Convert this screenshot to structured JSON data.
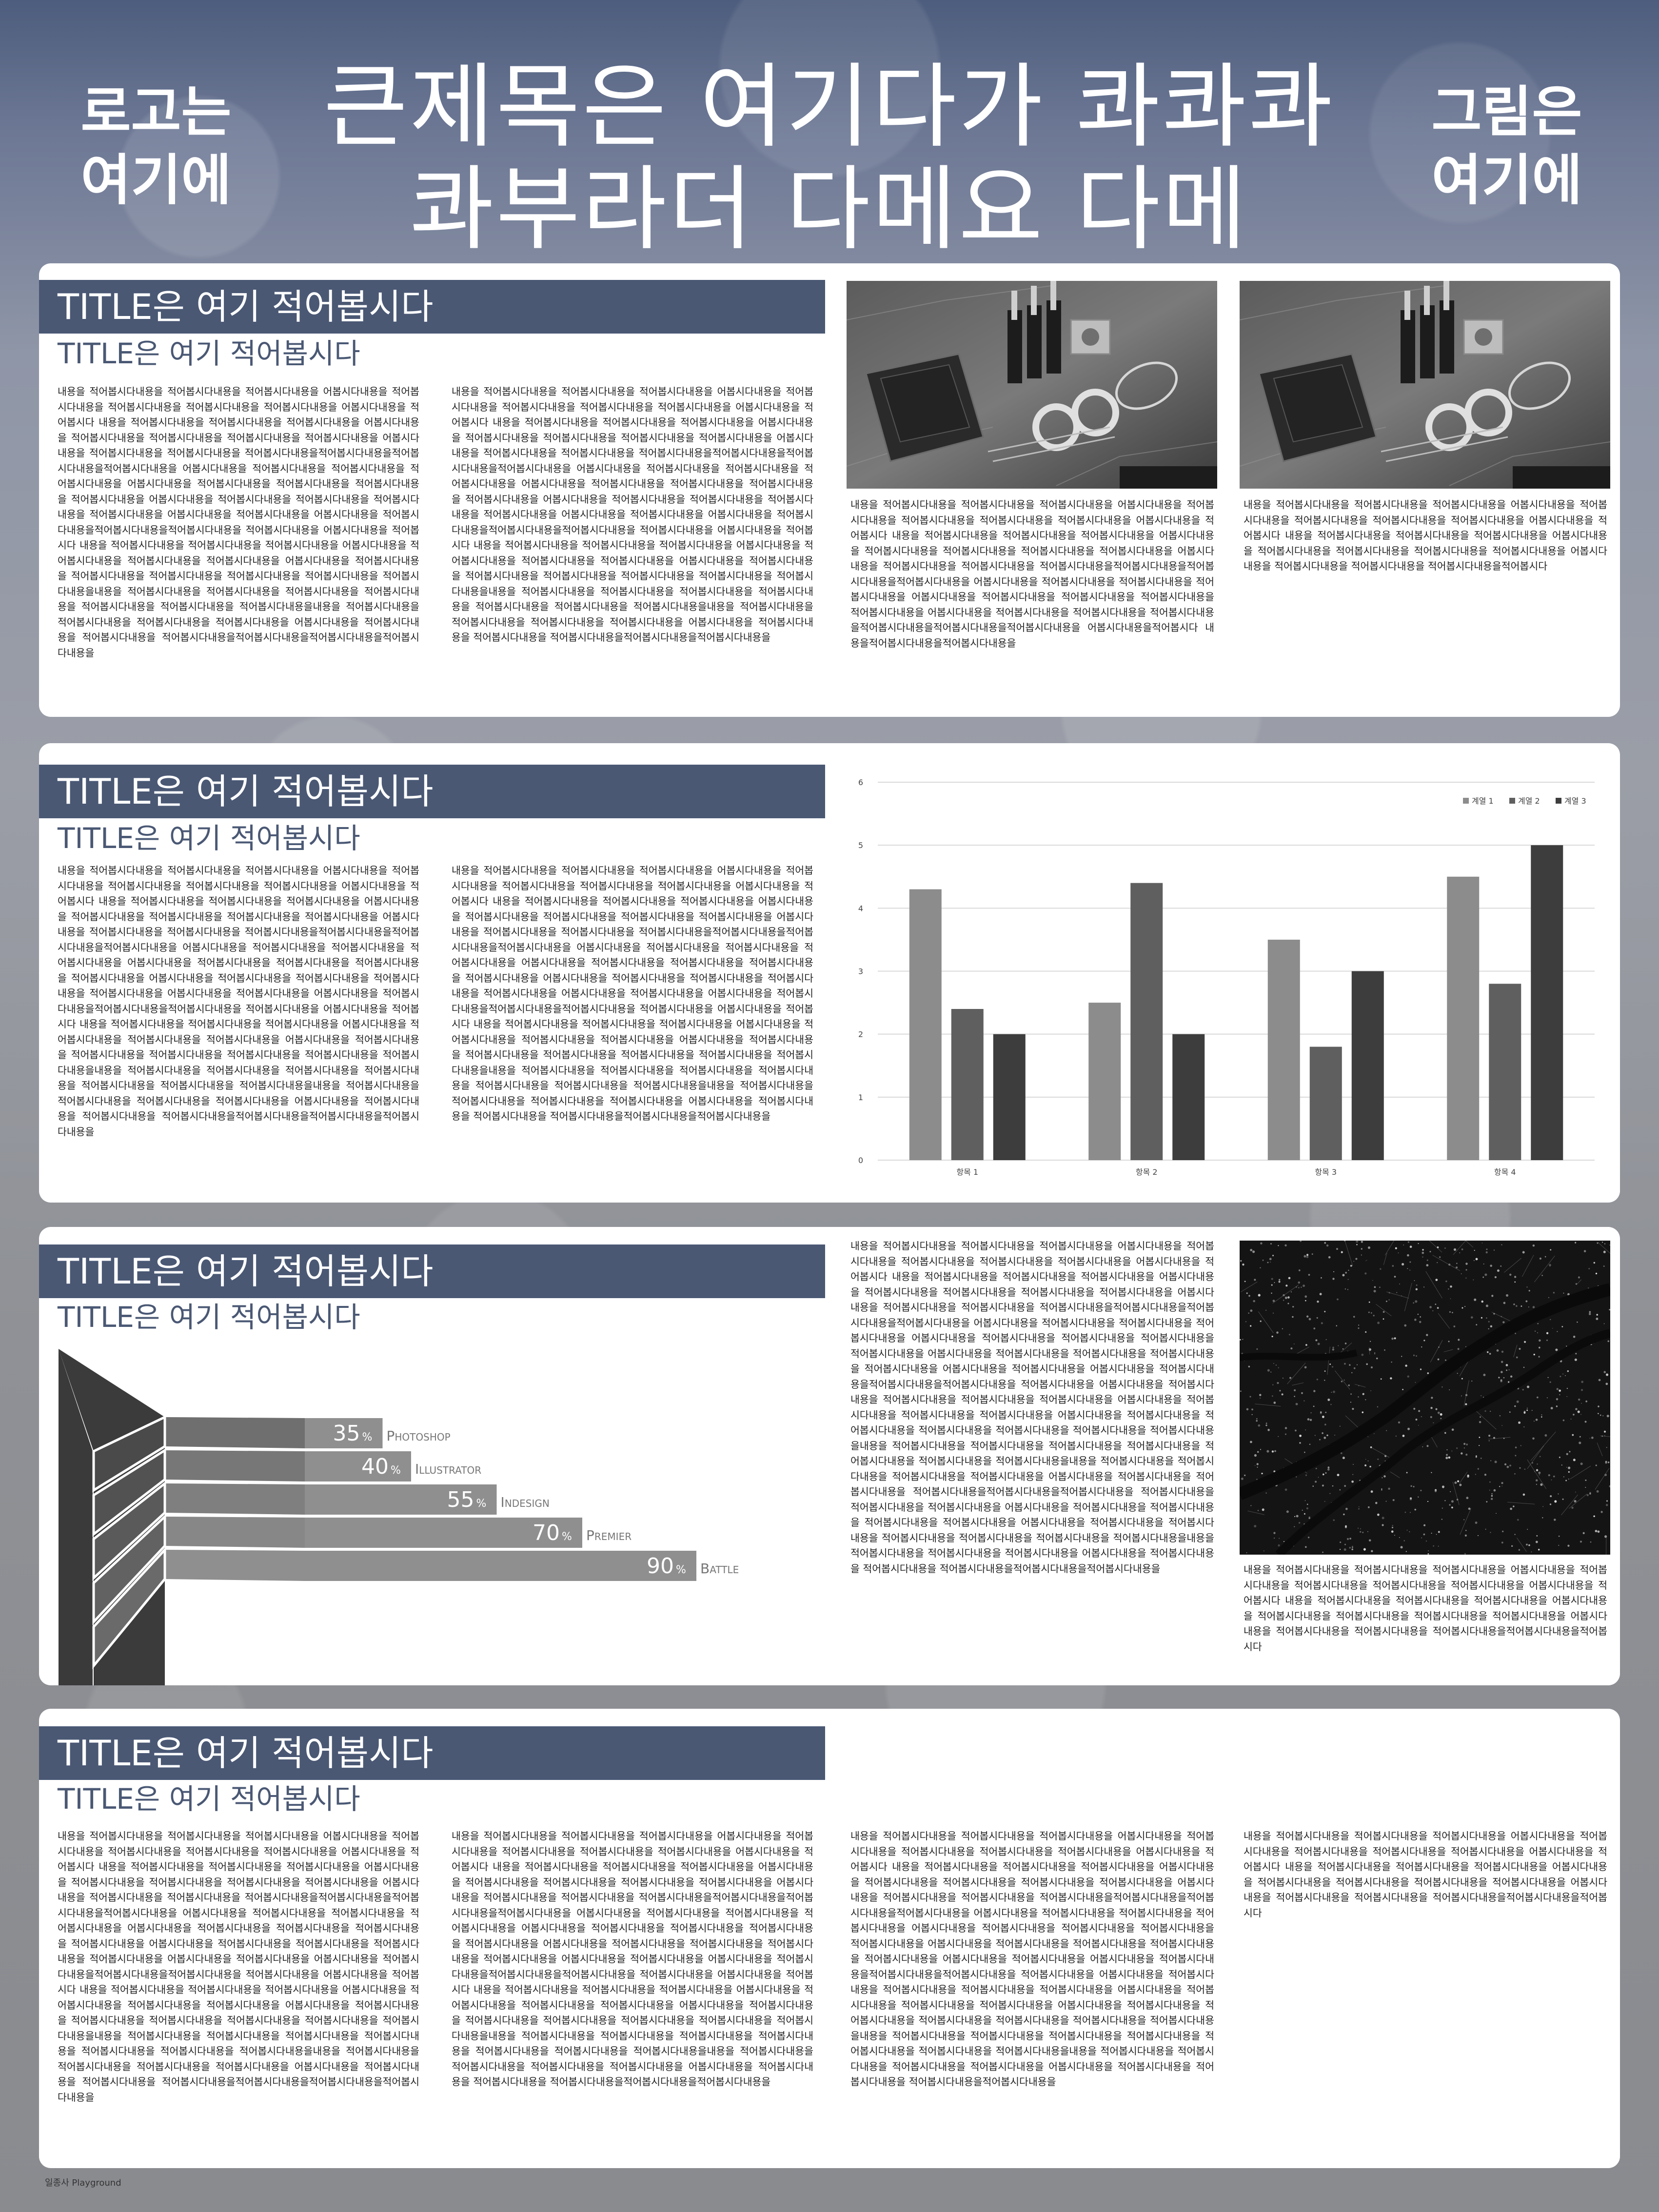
{
  "header": {
    "logo_left": "로고는\n여기에",
    "title": "큰제목은 여기다가 콰콰콰\n콰부라더 다메요 다메",
    "logo_right": "그림은\n여기에"
  },
  "sections": [
    {
      "title": "TITLE은 여기 적어봅시다",
      "subtitle": "TITLE은 여기 적어봅시다",
      "text_col1": "내용을 적어봅시다내용을 적어봅시다내용을 적어봅시다내용을 어봅시다내용을 적어봅시다내용을 적어봅시다내용을 적어봅시다내용을 적어봅시다내용을 어봅시다내용을 적어봅시다 내용을 적어봅시다내용을 적어봅시다내용을 적어봅시다내용을 어봅시다내용을 적어봅시다내용을 적어봅시다내용을 적어봅시다내용을 적어봅시다내용을 어봅시다내용을 적어봅시다내용을 적어봅시다내용을 적어봅시다내용을적어봅시다내용을적어봅시다내용을적어봅시다내용을 어봅시다내용을 적어봅시다내용을 적어봅시다내용을 적어봅시다내용을 어봅시다내용을 적어봅시다내용을 적어봅시다내용을 적어봅시다내용을 적어봅시다내용을 어봅시다내용을 적어봅시다내용을 적어봅시다내용을 적어봅시다내용을 적어봅시다내용을 어봅시다내용을 적어봅시다내용을 어봅시다내용을 적어봅시다내용을적어봅시다내용을적어봅시다내용을 적어봅시다내용을 어봅시다내용을 적어봅시다 내용을 적어봅시다내용을 적어봅시다내용을 적어봅시다내용을 어봅시다내용을 적어봅시다내용을 적어봅시다내용을 적어봅시다내용을 어봅시다내용을 적어봅시다내용을 적어봅시다내용을 적어봅시다내용을 적어봅시다내용을 적어봅시다내용을 적어봅시다내용을내용을 적어봅시다내용을 적어봅시다내용을 적어봅시다내용을 적어봅시다내용을 적어봅시다내용을 적어봅시다내용을 적어봅시다내용을내용을 적어봅시다내용을 적어봅시다내용을 적어봅시다내용을 적어봅시다내용을 어봅시다내용을 적어봅시다내용을 적어봅시다내용을 적어봅시다내용을적어봅시다내용을적어봅시다내용을적어봅시다내용을",
      "text_col2": "내용을 적어봅시다내용을 적어봅시다내용을 적어봅시다내용을 어봅시다내용을 적어봅시다내용을 적어봅시다내용을 적어봅시다내용을 적어봅시다내용을 어봅시다내용을 적어봅시다 내용을 적어봅시다내용을 적어봅시다내용을 적어봅시다내용을 어봅시다내용을 적어봅시다내용을 적어봅시다내용을 적어봅시다내용을 적어봅시다내용을 어봅시다내용을 적어봅시다내용을 적어봅시다내용을 적어봅시다내용을적어봅시다내용을적어봅시다내용을적어봅시다내용을 어봅시다내용을 적어봅시다내용을 적어봅시다내용을 적어봅시다내용을 어봅시다내용을 적어봅시다내용을 적어봅시다내용을 적어봅시다내용을 적어봅시다내용을 어봅시다내용을 적어봅시다내용을 적어봅시다내용을 적어봅시다내용을 적어봅시다내용을 어봅시다내용을 적어봅시다내용을 어봅시다내용을 적어봅시다내용을적어봅시다내용을적어봅시다내용을 적어봅시다내용을 어봅시다내용을 적어봅시다 내용을 적어봅시다내용을 적어봅시다내용을 적어봅시다내용을 어봅시다내용을 적어봅시다내용을 적어봅시다내용을 적어봅시다내용을 어봅시다내용을 적어봅시다내용을 적어봅시다내용을 적어봅시다내용을 적어봅시다내용을 적어봅시다내용을 적어봅시다내용을내용을 적어봅시다내용을 적어봅시다내용을 적어봅시다내용을 적어봅시다내용을 적어봅시다내용을 적어봅시다내용을 적어봅시다내용을내용을 적어봅시다내용을 적어봅시다내용을 적어봅시다내용을 적어봅시다내용을 어봅시다내용을 적어봅시다내용을 적어봅시다내용을 적어봅시다내용을적어봅시다내용을적어봅시다내용을",
      "caption_1": "내용을 적어봅시다내용을 적어봅시다내용을 적어봅시다내용을 어봅시다내용을 적어봅시다내용을 적어봅시다내용을 적어봅시다내용을 적어봅시다내용을 어봅시다내용을 적어봅시다 내용을 적어봅시다내용을 적어봅시다내용을 적어봅시다내용을 어봅시다내용을 적어봅시다내용을 적어봅시다내용을 적어봅시다내용을 적어봅시다내용을 어봅시다내용을 적어봅시다내용을 적어봅시다내용을 적어봅시다내용을적어봅시다내용을적어봅시다내용을적어봅시다내용을 어봅시다내용을 적어봅시다내용을 적어봅시다내용을 적어봅시다내용을 어봅시다내용을 적어봅시다내용을 적어봅시다내용을 적어봅시다내용을 적어봅시다내용을 어봅시다내용을 적어봅시다내용을 적어봅시다내용을 적어봅시다내용을적어봅시다내용을적어봅시다내용을적어봅시다내용을 어봅시다내용을적어봅시다 내용을적어봅시다내용을적어봅시다내용을",
      "caption_2": "내용을 적어봅시다내용을 적어봅시다내용을 적어봅시다내용을 어봅시다내용을 적어봅시다내용을 적어봅시다내용을 적어봅시다내용을 적어봅시다내용을 어봅시다내용을 적어봅시다 내용을 적어봅시다내용을 적어봅시다내용을 적어봅시다내용을 어봅시다내용을 적어봅시다내용을 적어봅시다내용을 적어봅시다내용을 적어봅시다내용을 어봅시다내용을 적어봅시다내용을 적어봅시다내용을 적어봅시다내용을적어봅시다"
    },
    {
      "title": "TITLE은 여기 적어봅시다",
      "subtitle": "TITLE은 여기 적어봅시다",
      "text_col1": "내용을 적어봅시다내용을 적어봅시다내용을 적어봅시다내용을 어봅시다내용을 적어봅시다내용을 적어봅시다내용을 적어봅시다내용을 적어봅시다내용을 어봅시다내용을 적어봅시다 내용을 적어봅시다내용을 적어봅시다내용을 적어봅시다내용을 어봅시다내용을 적어봅시다내용을 적어봅시다내용을 적어봅시다내용을 적어봅시다내용을 어봅시다내용을 적어봅시다내용을 적어봅시다내용을 적어봅시다내용을적어봅시다내용을적어봅시다내용을적어봅시다내용을 어봅시다내용을 적어봅시다내용을 적어봅시다내용을 적어봅시다내용을 어봅시다내용을 적어봅시다내용을 적어봅시다내용을 적어봅시다내용을 적어봅시다내용을 어봅시다내용을 적어봅시다내용을 적어봅시다내용을 적어봅시다내용을 적어봅시다내용을 어봅시다내용을 적어봅시다내용을 어봅시다내용을 적어봅시다내용을적어봅시다내용을적어봅시다내용을 적어봅시다내용을 어봅시다내용을 적어봅시다 내용을 적어봅시다내용을 적어봅시다내용을 적어봅시다내용을 어봅시다내용을 적어봅시다내용을 적어봅시다내용을 적어봅시다내용을 어봅시다내용을 적어봅시다내용을 적어봅시다내용을 적어봅시다내용을 적어봅시다내용을 적어봅시다내용을 적어봅시다내용을내용을 적어봅시다내용을 적어봅시다내용을 적어봅시다내용을 적어봅시다내용을 적어봅시다내용을 적어봅시다내용을 적어봅시다내용을내용을 적어봅시다내용을 적어봅시다내용을 적어봅시다내용을 적어봅시다내용을 어봅시다내용을 적어봅시다내용을 적어봅시다내용을 적어봅시다내용을적어봅시다내용을적어봅시다내용을적어봅시다내용을",
      "text_col2": "내용을 적어봅시다내용을 적어봅시다내용을 적어봅시다내용을 어봅시다내용을 적어봅시다내용을 적어봅시다내용을 적어봅시다내용을 적어봅시다내용을 어봅시다내용을 적어봅시다 내용을 적어봅시다내용을 적어봅시다내용을 적어봅시다내용을 어봅시다내용을 적어봅시다내용을 적어봅시다내용을 적어봅시다내용을 적어봅시다내용을 어봅시다내용을 적어봅시다내용을 적어봅시다내용을 적어봅시다내용을적어봅시다내용을적어봅시다내용을적어봅시다내용을 어봅시다내용을 적어봅시다내용을 적어봅시다내용을 적어봅시다내용을 어봅시다내용을 적어봅시다내용을 적어봅시다내용을 적어봅시다내용을 적어봅시다내용을 어봅시다내용을 적어봅시다내용을 적어봅시다내용을 적어봅시다내용을 적어봅시다내용을 어봅시다내용을 적어봅시다내용을 어봅시다내용을 적어봅시다내용을적어봅시다내용을적어봅시다내용을 적어봅시다내용을 어봅시다내용을 적어봅시다 내용을 적어봅시다내용을 적어봅시다내용을 적어봅시다내용을 어봅시다내용을 적어봅시다내용을 적어봅시다내용을 적어봅시다내용을 어봅시다내용을 적어봅시다내용을 적어봅시다내용을 적어봅시다내용을 적어봅시다내용을 적어봅시다내용을 적어봅시다내용을내용을 적어봅시다내용을 적어봅시다내용을 적어봅시다내용을 적어봅시다내용을 적어봅시다내용을 적어봅시다내용을 적어봅시다내용을내용을 적어봅시다내용을 적어봅시다내용을 적어봅시다내용을 적어봅시다내용을 어봅시다내용을 적어봅시다내용을 적어봅시다내용을 적어봅시다내용을적어봅시다내용을적어봅시다내용을"
    },
    {
      "title": "TITLE은 여기 적어봅시다",
      "subtitle": "TITLE은 여기 적어봅시다",
      "text_col": "내용을 적어봅시다내용을 적어봅시다내용을 적어봅시다내용을 어봅시다내용을 적어봅시다내용을 적어봅시다내용을 적어봅시다내용을 적어봅시다내용을 어봅시다내용을 적어봅시다 내용을 적어봅시다내용을 적어봅시다내용을 적어봅시다내용을 어봅시다내용을 적어봅시다내용을 적어봅시다내용을 적어봅시다내용을 적어봅시다내용을 어봅시다내용을 적어봅시다내용을 적어봅시다내용을 적어봅시다내용을적어봅시다내용을적어봅시다내용을적어봅시다내용을 어봅시다내용을 적어봅시다내용을 적어봅시다내용을 적어봅시다내용을 어봅시다내용을 적어봅시다내용을 적어봅시다내용을 적어봅시다내용을 적어봅시다내용을 어봅시다내용을 적어봅시다내용을 적어봅시다내용을 적어봅시다내용을 적어봅시다내용을 어봅시다내용을 적어봅시다내용을 어봅시다내용을 적어봅시다내용을적어봅시다내용을적어봅시다내용을 적어봅시다내용을 어봅시다내용을 적어봅시다 내용을 적어봅시다내용을 적어봅시다내용을 적어봅시다내용을 어봅시다내용을 적어봅시다내용을 적어봅시다내용을 적어봅시다내용을 어봅시다내용을 적어봅시다내용을 적어봅시다내용을 적어봅시다내용을 적어봅시다내용을 적어봅시다내용을 적어봅시다내용을내용을 적어봅시다내용을 적어봅시다내용을 적어봅시다내용을 적어봅시다내용을 적어봅시다내용을 적어봅시다내용을 적어봅시다내용을내용을 적어봅시다내용을 적어봅시다내용을 적어봅시다내용을 적어봅시다내용을 어봅시다내용을 적어봅시다내용을 적어봅시다내용을 적어봅시다내용을적어봅시다내용을적어봅시다내용을 적어봅시다내용을 적어봅시다내용을 적어봅시다내용을 어봅시다내용을 적어봅시다내용을 적어봅시다내용을 적어봅시다내용을 적어봅시다내용을 어봅시다내용을 적어봅시다내용을 적어봅시다내용을 적어봅시다내용을 적어봅시다내용을 적어봅시다내용을 적어봅시다내용을내용을 적어봅시다내용을 적어봅시다내용을 적어봅시다내용을 어봅시다내용을 적어봅시다내용을 적어봅시다내용을 적어봅시다내용을적어봅시다내용을적어봅시다내용을",
      "caption": "내용을 적어봅시다내용을 적어봅시다내용을 적어봅시다내용을 어봅시다내용을 적어봅시다내용을 적어봅시다내용을 적어봅시다내용을 적어봅시다내용을 어봅시다내용을 적어봅시다 내용을 적어봅시다내용을 적어봅시다내용을 적어봅시다내용을 어봅시다내용을 적어봅시다내용을 적어봅시다내용을 적어봅시다내용을 적어봅시다내용을 어봅시다내용을 적어봅시다내용을 적어봅시다내용을 적어봅시다내용을적어봅시다내용을적어봅시다",
      "skills": [
        {
          "pct": "35",
          "name": "Photoshop"
        },
        {
          "pct": "40",
          "name": "Illustrator"
        },
        {
          "pct": "55",
          "name": "Indesign"
        },
        {
          "pct": "70",
          "name": "Premier"
        },
        {
          "pct": "90",
          "name": "Battle"
        }
      ],
      "pct_sign": "%"
    },
    {
      "title": "TITLE은 여기 적어봅시다",
      "subtitle": "TITLE은 여기 적어봅시다",
      "text_col1": "내용을 적어봅시다내용을 적어봅시다내용을 적어봅시다내용을 어봅시다내용을 적어봅시다내용을 적어봅시다내용을 적어봅시다내용을 적어봅시다내용을 어봅시다내용을 적어봅시다 내용을 적어봅시다내용을 적어봅시다내용을 적어봅시다내용을 어봅시다내용을 적어봅시다내용을 적어봅시다내용을 적어봅시다내용을 적어봅시다내용을 어봅시다내용을 적어봅시다내용을 적어봅시다내용을 적어봅시다내용을적어봅시다내용을적어봅시다내용을적어봅시다내용을 어봅시다내용을 적어봅시다내용을 적어봅시다내용을 적어봅시다내용을 어봅시다내용을 적어봅시다내용을 적어봅시다내용을 적어봅시다내용을 적어봅시다내용을 어봅시다내용을 적어봅시다내용을 적어봅시다내용을 적어봅시다내용을 적어봅시다내용을 어봅시다내용을 적어봅시다내용을 어봅시다내용을 적어봅시다내용을적어봅시다내용을적어봅시다내용을 적어봅시다내용을 어봅시다내용을 적어봅시다 내용을 적어봅시다내용을 적어봅시다내용을 적어봅시다내용을 어봅시다내용을 적어봅시다내용을 적어봅시다내용을 적어봅시다내용을 어봅시다내용을 적어봅시다내용을 적어봅시다내용을 적어봅시다내용을 적어봅시다내용을 적어봅시다내용을 적어봅시다내용을내용을 적어봅시다내용을 적어봅시다내용을 적어봅시다내용을 적어봅시다내용을 적어봅시다내용을 적어봅시다내용을 적어봅시다내용을내용을 적어봅시다내용을 적어봅시다내용을 적어봅시다내용을 적어봅시다내용을 어봅시다내용을 적어봅시다내용을 적어봅시다내용을 적어봅시다내용을적어봅시다내용을적어봅시다내용을적어봅시다내용을",
      "text_col2": "내용을 적어봅시다내용을 적어봅시다내용을 적어봅시다내용을 어봅시다내용을 적어봅시다내용을 적어봅시다내용을 적어봅시다내용을 적어봅시다내용을 어봅시다내용을 적어봅시다 내용을 적어봅시다내용을 적어봅시다내용을 적어봅시다내용을 어봅시다내용을 적어봅시다내용을 적어봅시다내용을 적어봅시다내용을 적어봅시다내용을 어봅시다내용을 적어봅시다내용을 적어봅시다내용을 적어봅시다내용을적어봅시다내용을적어봅시다내용을적어봅시다내용을 어봅시다내용을 적어봅시다내용을 적어봅시다내용을 적어봅시다내용을 어봅시다내용을 적어봅시다내용을 적어봅시다내용을 적어봅시다내용을 적어봅시다내용을 어봅시다내용을 적어봅시다내용을 적어봅시다내용을 적어봅시다내용을 적어봅시다내용을 어봅시다내용을 적어봅시다내용을 어봅시다내용을 적어봅시다내용을적어봅시다내용을적어봅시다내용을 적어봅시다내용을 어봅시다내용을 적어봅시다 내용을 적어봅시다내용을 적어봅시다내용을 적어봅시다내용을 어봅시다내용을 적어봅시다내용을 적어봅시다내용을 적어봅시다내용을 어봅시다내용을 적어봅시다내용을 적어봅시다내용을 적어봅시다내용을 적어봅시다내용을 적어봅시다내용을 적어봅시다내용을내용을 적어봅시다내용을 적어봅시다내용을 적어봅시다내용을 적어봅시다내용을 적어봅시다내용을 적어봅시다내용을 적어봅시다내용을내용을 적어봅시다내용을 적어봅시다내용을 적어봅시다내용을 적어봅시다내용을 어봅시다내용을 적어봅시다내용을 적어봅시다내용을 적어봅시다내용을적어봅시다내용을적어봅시다내용을",
      "text_col3": "내용을 적어봅시다내용을 적어봅시다내용을 적어봅시다내용을 어봅시다내용을 적어봅시다내용을 적어봅시다내용을 적어봅시다내용을 적어봅시다내용을 어봅시다내용을 적어봅시다 내용을 적어봅시다내용을 적어봅시다내용을 적어봅시다내용을 어봅시다내용을 적어봅시다내용을 적어봅시다내용을 적어봅시다내용을 적어봅시다내용을 어봅시다내용을 적어봅시다내용을 적어봅시다내용을 적어봅시다내용을적어봅시다내용을적어봅시다내용을적어봅시다내용을 어봅시다내용을 적어봅시다내용을 적어봅시다내용을 적어봅시다내용을 어봅시다내용을 적어봅시다내용을 적어봅시다내용을 적어봅시다내용을 적어봅시다내용을 어봅시다내용을 적어봅시다내용을 적어봅시다내용을 적어봅시다내용을 적어봅시다내용을 어봅시다내용을 적어봅시다내용을 어봅시다내용을 적어봅시다내용을적어봅시다내용을적어봅시다내용을 적어봅시다내용을 어봅시다내용을 적어봅시다 내용을 적어봅시다내용을 적어봅시다내용을 적어봅시다내용을 어봅시다내용을 적어봅시다내용을 적어봅시다내용을 적어봅시다내용을 어봅시다내용을 적어봅시다내용을 적어봅시다내용을 적어봅시다내용을 적어봅시다내용을 적어봅시다내용을 적어봅시다내용을내용을 적어봅시다내용을 적어봅시다내용을 적어봅시다내용을 적어봅시다내용을 적어봅시다내용을 적어봅시다내용을 적어봅시다내용을내용을 적어봅시다내용을 적어봅시다내용을 적어봅시다내용을 적어봅시다내용을 어봅시다내용을 적어봅시다내용을 적어봅시다내용을 적어봅시다내용을적어봅시다내용을",
      "text_col4": "내용을 적어봅시다내용을 적어봅시다내용을 적어봅시다내용을 어봅시다내용을 적어봅시다내용을 적어봅시다내용을 적어봅시다내용을 적어봅시다내용을 어봅시다내용을 적어봅시다 내용을 적어봅시다내용을 적어봅시다내용을 적어봅시다내용을 어봅시다내용을 적어봅시다내용을 적어봅시다내용을 적어봅시다내용을 적어봅시다내용을 어봅시다내용을 적어봅시다내용을 적어봅시다내용을 적어봅시다내용을적어봅시다내용을적어봅시다"
    }
  ],
  "chart_data": {
    "type": "bar",
    "categories": [
      "항목 1",
      "항목 2",
      "항목 3",
      "항목 4"
    ],
    "series": [
      {
        "name": "계열 1",
        "values": [
          4.3,
          2.5,
          3.5,
          4.5
        ],
        "color": "#8c8c8c"
      },
      {
        "name": "계열 2",
        "values": [
          2.4,
          4.4,
          1.8,
          2.8
        ],
        "color": "#5f5f5f"
      },
      {
        "name": "계열 3",
        "values": [
          2.0,
          2.0,
          3.0,
          5.0
        ],
        "color": "#3d3d3d"
      }
    ],
    "ylim": [
      0,
      6
    ],
    "yticks": [
      "0",
      "1",
      "2",
      "3",
      "4",
      "5",
      "6"
    ],
    "grid": true,
    "legend": "top-right",
    "title": "",
    "xlabel": "",
    "ylabel": ""
  },
  "footer": {
    "credit": "일종사 Playground"
  },
  "colors": {
    "accent": "#4a5874",
    "panel": "#ffffff"
  }
}
